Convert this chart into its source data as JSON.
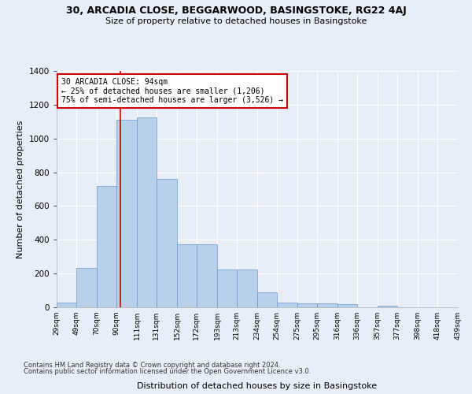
{
  "title1": "30, ARCADIA CLOSE, BEGGARWOOD, BASINGSTOKE, RG22 4AJ",
  "title2": "Size of property relative to detached houses in Basingstoke",
  "xlabel": "Distribution of detached houses by size in Basingstoke",
  "ylabel": "Number of detached properties",
  "footer1": "Contains HM Land Registry data © Crown copyright and database right 2024.",
  "footer2": "Contains public sector information licensed under the Open Government Licence v3.0.",
  "annotation_title": "30 ARCADIA CLOSE: 94sqm",
  "annotation_line1": "← 25% of detached houses are smaller (1,206)",
  "annotation_line2": "75% of semi-detached houses are larger (3,526) →",
  "subject_value": 94,
  "bar_left_edges": [
    29,
    49,
    70,
    90,
    111,
    131,
    152,
    172,
    193,
    213,
    234,
    254,
    275,
    295,
    316,
    336,
    357,
    377,
    398,
    418
  ],
  "bar_widths": [
    20,
    21,
    20,
    21,
    20,
    21,
    20,
    21,
    20,
    21,
    20,
    21,
    20,
    21,
    20,
    21,
    20,
    21,
    20,
    21
  ],
  "bar_heights": [
    30,
    235,
    720,
    1110,
    1125,
    760,
    375,
    375,
    225,
    225,
    90,
    30,
    25,
    25,
    18,
    0,
    10,
    0,
    0,
    0
  ],
  "bar_color": "#b8d0ea",
  "bar_edge_color": "#6699cc",
  "vline_color": "#cc0000",
  "vline_x": 94,
  "ylim": [
    0,
    1400
  ],
  "xlim": [
    29,
    439
  ],
  "bg_color": "#e8eef8",
  "plot_bg_color": "#e8eef8",
  "grid_color": "#ffffff",
  "annotation_box_color": "#ffffff",
  "annotation_box_edge_color": "#cc0000",
  "tick_labels": [
    "29sqm",
    "49sqm",
    "70sqm",
    "90sqm",
    "111sqm",
    "131sqm",
    "152sqm",
    "172sqm",
    "193sqm",
    "213sqm",
    "234sqm",
    "254sqm",
    "275sqm",
    "295sqm",
    "316sqm",
    "336sqm",
    "357sqm",
    "377sqm",
    "398sqm",
    "418sqm",
    "439sqm"
  ],
  "yticks": [
    0,
    200,
    400,
    600,
    800,
    1000,
    1200,
    1400
  ]
}
